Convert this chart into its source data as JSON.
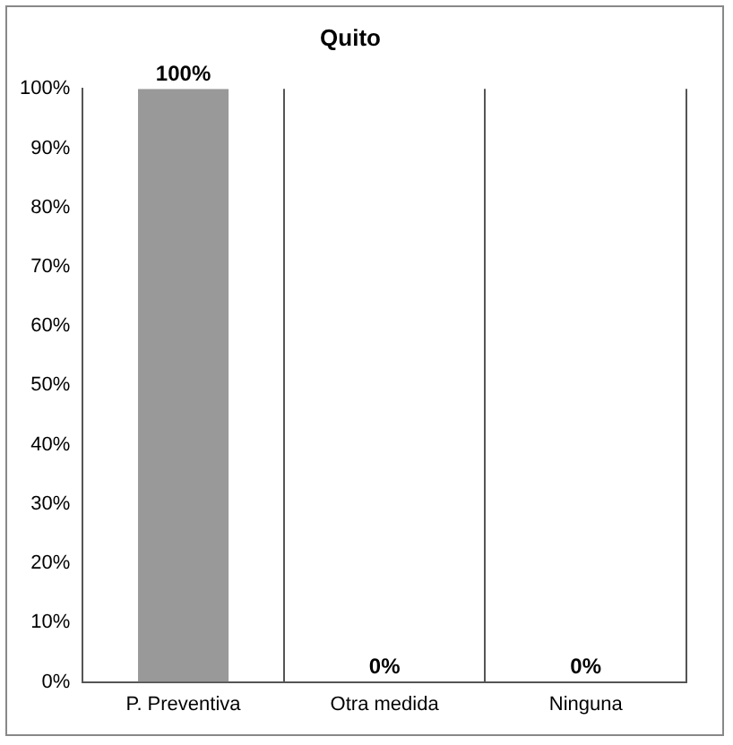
{
  "chart_data": {
    "type": "bar",
    "title": "Quito",
    "categories": [
      "P. Preventiva",
      "Otra medida",
      "Ninguna"
    ],
    "values": [
      100,
      0,
      0
    ],
    "color": "#999999",
    "value_labels": [
      "100%",
      "0%",
      "0%"
    ],
    "ylim": [
      0,
      100
    ],
    "yticks": [
      {
        "value": 0,
        "label": "0%"
      },
      {
        "value": 10,
        "label": "10%"
      },
      {
        "value": 20,
        "label": "20%"
      },
      {
        "value": 30,
        "label": "30%"
      },
      {
        "value": 40,
        "label": "40%"
      },
      {
        "value": 50,
        "label": "50%"
      },
      {
        "value": 60,
        "label": "60%"
      },
      {
        "value": 70,
        "label": "70%"
      },
      {
        "value": 80,
        "label": "80%"
      },
      {
        "value": 90,
        "label": "90%"
      },
      {
        "value": 100,
        "label": "100%"
      }
    ],
    "grid": "x",
    "legend": false
  }
}
